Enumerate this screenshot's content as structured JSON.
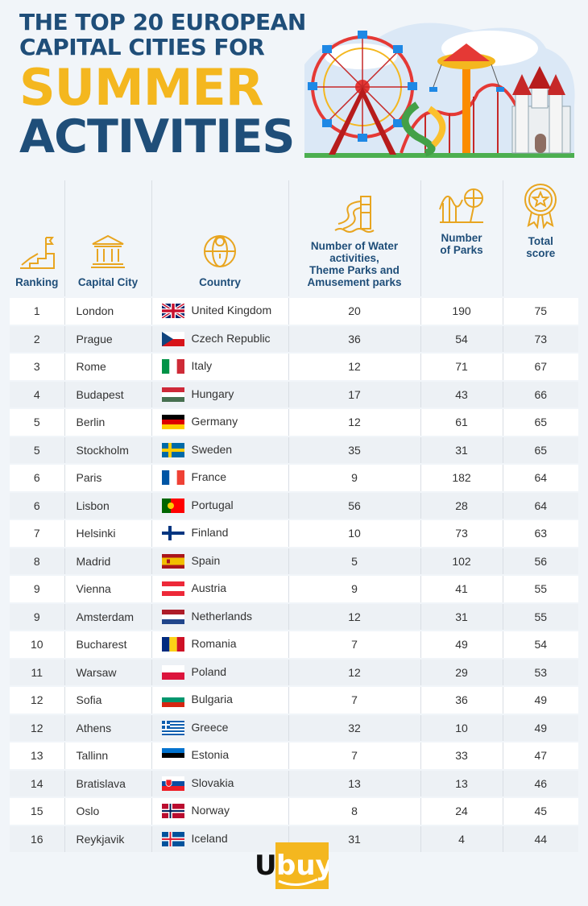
{
  "title": {
    "line1": "THE TOP 20 EUROPEAN",
    "line2": "CAPITAL CITIES FOR",
    "line3": "SUMMER",
    "line4": "ACTIVITIES"
  },
  "headers": {
    "ranking": "Ranking",
    "city": "Capital City",
    "country": "Country",
    "water1": "Number of Water",
    "water2": "activities,",
    "water3": "Theme Parks and",
    "water4": "Amusement parks",
    "parks1": "Number",
    "parks2": "of Parks",
    "score1": "Total",
    "score2": "score"
  },
  "rows": [
    {
      "rank": "1",
      "city": "London",
      "country": "United Kingdom",
      "water": "20",
      "parks": "190",
      "score": "75"
    },
    {
      "rank": "2",
      "city": "Prague",
      "country": "Czech Republic",
      "water": "36",
      "parks": "54",
      "score": "73"
    },
    {
      "rank": "3",
      "city": "Rome",
      "country": "Italy",
      "water": "12",
      "parks": "71",
      "score": "67"
    },
    {
      "rank": "4",
      "city": "Budapest",
      "country": "Hungary",
      "water": "17",
      "parks": "43",
      "score": "66"
    },
    {
      "rank": "5",
      "city": "Berlin",
      "country": "Germany",
      "water": "12",
      "parks": "61",
      "score": "65"
    },
    {
      "rank": "5",
      "city": "Stockholm",
      "country": "Sweden",
      "water": "35",
      "parks": "31",
      "score": "65"
    },
    {
      "rank": "6",
      "city": "Paris",
      "country": "France",
      "water": "9",
      "parks": "182",
      "score": "64"
    },
    {
      "rank": "6",
      "city": "Lisbon",
      "country": "Portugal",
      "water": "56",
      "parks": "28",
      "score": "64"
    },
    {
      "rank": "7",
      "city": "Helsinki",
      "country": "Finland",
      "water": "10",
      "parks": "73",
      "score": "63"
    },
    {
      "rank": "8",
      "city": "Madrid",
      "country": "Spain",
      "water": "5",
      "parks": "102",
      "score": "56"
    },
    {
      "rank": "9",
      "city": "Vienna",
      "country": "Austria",
      "water": "9",
      "parks": "41",
      "score": "55"
    },
    {
      "rank": "9",
      "city": "Amsterdam",
      "country": "Netherlands",
      "water": "12",
      "parks": "31",
      "score": "55"
    },
    {
      "rank": "10",
      "city": "Bucharest",
      "country": "Romania",
      "water": "7",
      "parks": "49",
      "score": "54"
    },
    {
      "rank": "11",
      "city": "Warsaw",
      "country": "Poland",
      "water": "12",
      "parks": "29",
      "score": "53"
    },
    {
      "rank": "12",
      "city": "Sofia",
      "country": "Bulgaria",
      "water": "7",
      "parks": "36",
      "score": "49"
    },
    {
      "rank": "12",
      "city": "Athens",
      "country": "Greece",
      "water": "32",
      "parks": "10",
      "score": "49"
    },
    {
      "rank": "13",
      "city": "Tallinn",
      "country": "Estonia",
      "water": "7",
      "parks": "33",
      "score": "47"
    },
    {
      "rank": "14",
      "city": "Bratislava",
      "country": "Slovakia",
      "water": "13",
      "parks": "13",
      "score": "46"
    },
    {
      "rank": "15",
      "city": "Oslo",
      "country": "Norway",
      "water": "8",
      "parks": "24",
      "score": "45"
    },
    {
      "rank": "16",
      "city": "Reykjavik",
      "country": "Iceland",
      "water": "31",
      "parks": "4",
      "score": "44"
    }
  ],
  "flag_icons": [
    "uk-flag-icon",
    "czech-flag-icon",
    "italy-flag-icon",
    "hungary-flag-icon",
    "germany-flag-icon",
    "sweden-flag-icon",
    "france-flag-icon",
    "portugal-flag-icon",
    "finland-flag-icon",
    "spain-flag-icon",
    "austria-flag-icon",
    "netherlands-flag-icon",
    "romania-flag-icon",
    "poland-flag-icon",
    "bulgaria-flag-icon",
    "greece-flag-icon",
    "estonia-flag-icon",
    "slovakia-flag-icon",
    "norway-flag-icon",
    "iceland-flag-icon"
  ],
  "brand": {
    "logo_text": "Ubuy",
    "navy": "#1f4e79",
    "gold": "#f4b71f",
    "icon_gold": "#e8a520"
  }
}
